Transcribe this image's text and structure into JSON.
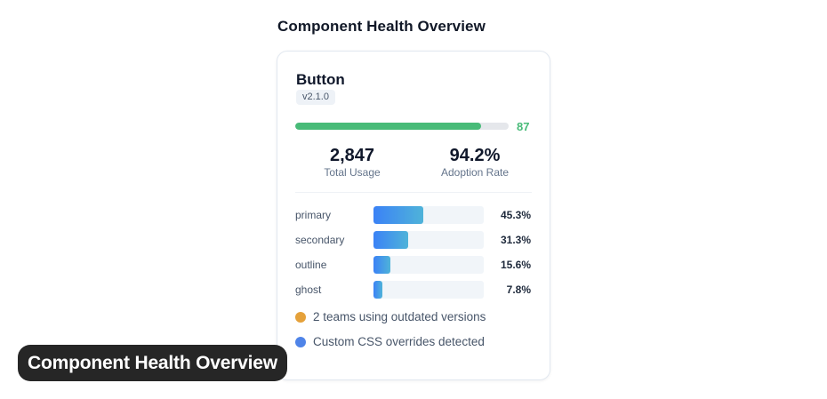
{
  "page": {
    "section_title": "Component Health Overview"
  },
  "card": {
    "component_name": "Button",
    "version": "v2.1.0",
    "health_score": 87,
    "health_color": "#48bb78",
    "stats": {
      "usage_value": "2,847",
      "usage_label": "Total Usage",
      "adoption_value": "94.2%",
      "adoption_label": "Adoption Rate"
    },
    "variants": [
      {
        "name": "primary",
        "percent": 45.3,
        "label": "45.3%"
      },
      {
        "name": "secondary",
        "percent": 31.3,
        "label": "31.3%"
      },
      {
        "name": "outline",
        "percent": 15.6,
        "label": "15.6%"
      },
      {
        "name": "ghost",
        "percent": 7.8,
        "label": "7.8%"
      }
    ],
    "alerts": [
      {
        "text": "2 teams using outdated versions",
        "color": "#e5a13a"
      },
      {
        "text": "Custom CSS overrides detected",
        "color": "#4f84e8"
      }
    ]
  },
  "caption": "Component Health Overview"
}
